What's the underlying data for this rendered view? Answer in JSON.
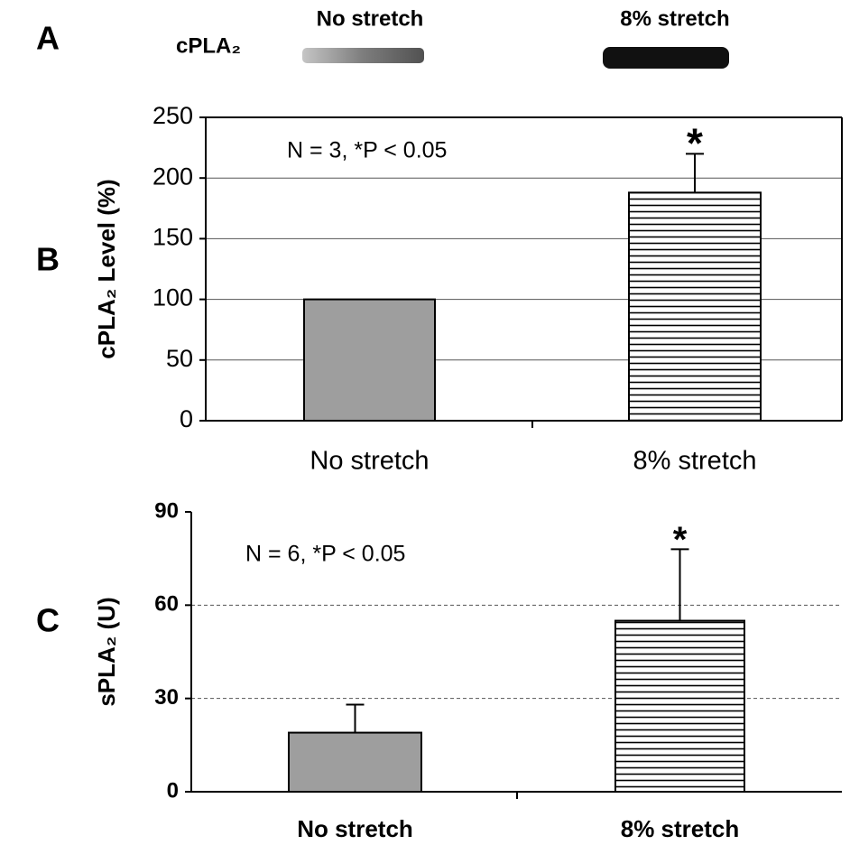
{
  "panel_a": {
    "letter": "A",
    "label": "cPLA₂",
    "lanes": [
      "No stretch",
      "8% stretch"
    ]
  },
  "chart_data": [
    {
      "type": "bar",
      "panel": "B",
      "ylabel": "cPLA₂ Level (%)",
      "annotation": "N = 3, *P < 0.05",
      "categories": [
        "No stretch",
        "8% stretch"
      ],
      "values": [
        100,
        188
      ],
      "errors": [
        null,
        32
      ],
      "markers": [
        null,
        "*"
      ],
      "colors": [
        "#9e9e9e",
        "#ffffff"
      ],
      "hatch": [
        false,
        true
      ],
      "ylim": [
        0,
        250
      ],
      "yticks": [
        0,
        50,
        100,
        150,
        200,
        250
      ],
      "grid": "solid"
    },
    {
      "type": "bar",
      "panel": "C",
      "ylabel": "sPLA₂ (U)",
      "annotation": "N = 6, *P < 0.05",
      "categories": [
        "No stretch",
        "8% stretch"
      ],
      "values": [
        19,
        55
      ],
      "errors": [
        9,
        23
      ],
      "markers": [
        null,
        "*"
      ],
      "colors": [
        "#9e9e9e",
        "#ffffff"
      ],
      "hatch": [
        false,
        true
      ],
      "ylim": [
        0,
        90
      ],
      "yticks": [
        0,
        30,
        60,
        90
      ],
      "grid": "dashed"
    }
  ]
}
